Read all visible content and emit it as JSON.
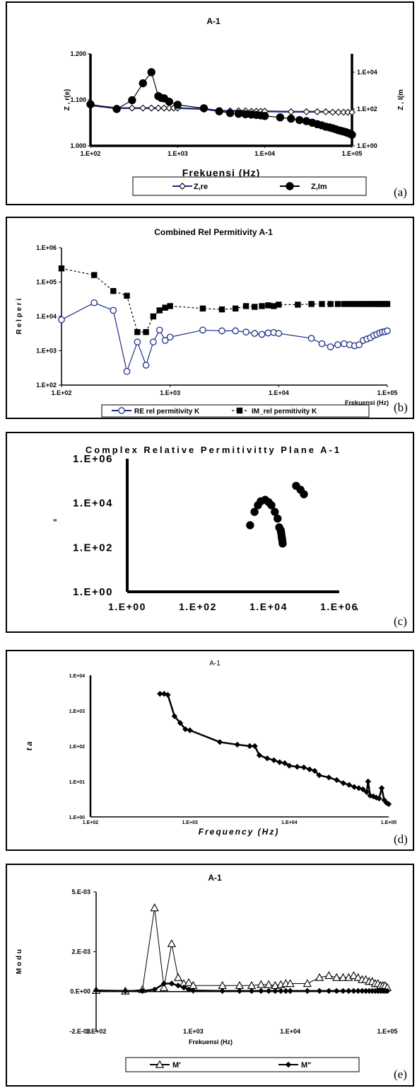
{
  "chart_data": [
    {
      "panel_label": "(a)",
      "type": "line",
      "title": "A-1",
      "xlabel": "Frekuensi (Hz)",
      "ylabel_left": "Z , r(e)",
      "ylabel_right": "Z , I(m",
      "x_scale": "log",
      "xlim": [
        100,
        100000
      ],
      "x_ticks": [
        "1.E+02",
        "1.E+03",
        "1.E+04",
        "1.E+05"
      ],
      "ylim_left": [
        1.0,
        1.2
      ],
      "y_ticks_left": [
        "1.000",
        "1.100",
        "1.200"
      ],
      "ylim_right": [
        1,
        100000
      ],
      "y_ticks_right": [
        "1.E+00",
        "1.E+02",
        "1.E+04"
      ],
      "legend": [
        "Z,re",
        "Z,Im"
      ],
      "legend_position": "bottom",
      "series": [
        {
          "name": "Z,re",
          "axis": "left",
          "color": "#1f2f8a",
          "marker": "diamond-open",
          "x": [
            100,
            200,
            300,
            400,
            500,
            600,
            700,
            800,
            900,
            1000,
            2000,
            3000,
            4000,
            5000,
            6000,
            7000,
            8000,
            9000,
            10000,
            20000,
            30000,
            40000,
            50000,
            60000,
            70000,
            80000,
            90000,
            100000
          ],
          "y": [
            1.088,
            1.082,
            1.082,
            1.082,
            1.082,
            1.082,
            1.082,
            1.082,
            1.082,
            1.082,
            1.08,
            1.076,
            1.076,
            1.076,
            1.076,
            1.075,
            1.075,
            1.075,
            1.075,
            1.074,
            1.074,
            1.074,
            1.074,
            1.073,
            1.073,
            1.073,
            1.073,
            1.073
          ]
        },
        {
          "name": "Z,Im",
          "axis": "right",
          "color": "#000000",
          "marker": "circle-filled",
          "x": [
            100,
            200,
            300,
            400,
            500,
            600,
            650,
            700,
            800,
            1000,
            2000,
            3000,
            4000,
            5000,
            6000,
            7000,
            8000,
            9000,
            10000,
            15000,
            20000,
            25000,
            30000,
            35000,
            40000,
            45000,
            50000,
            55000,
            60000,
            65000,
            70000,
            75000,
            80000,
            85000,
            90000,
            95000,
            100000
          ],
          "y": [
            180,
            100,
            300,
            2500,
            10000,
            500,
            400,
            380,
            250,
            170,
            110,
            75,
            60,
            55,
            52,
            50,
            48,
            45,
            42,
            35,
            30,
            25,
            22,
            18,
            15,
            13,
            11,
            10,
            9,
            8,
            7,
            6.5,
            6,
            5.5,
            5,
            4.5,
            4
          ]
        }
      ]
    },
    {
      "panel_label": "(b)",
      "type": "line",
      "title": "Combined Rel Permitivity A-1",
      "xlabel": "Frekuensi (Hz)",
      "ylabel": "R e l  p e r i",
      "x_scale": "log",
      "y_scale": "log",
      "xlim": [
        100,
        100000
      ],
      "ylim": [
        100,
        1000000
      ],
      "x_ticks": [
        "1.E+02",
        "1.E+03",
        "1.E+04",
        "1.E+05"
      ],
      "y_ticks": [
        "1.E+02",
        "1.E+03",
        "1.E+04",
        "1.E+05",
        "1.E+06"
      ],
      "legend": [
        "RE rel permitivity K",
        "IM_rel permitivity K"
      ],
      "legend_position": "bottom",
      "series": [
        {
          "name": "RE rel permitivity K",
          "color": "#1f2f8a",
          "marker": "circle-open",
          "x": [
            100,
            200,
            300,
            400,
            500,
            600,
            700,
            800,
            900,
            1000,
            2000,
            3000,
            4000,
            5000,
            6000,
            7000,
            8000,
            9000,
            10000,
            20000,
            25000,
            30000,
            35000,
            40000,
            45000,
            50000,
            55000,
            60000,
            65000,
            70000,
            75000,
            80000,
            85000,
            90000,
            95000,
            100000
          ],
          "y": [
            8000,
            25000,
            15000,
            250,
            1800,
            380,
            1800,
            4000,
            2000,
            2500,
            4000,
            3800,
            3800,
            3500,
            3200,
            3000,
            3300,
            3400,
            3200,
            2300,
            1600,
            1300,
            1500,
            1600,
            1500,
            1400,
            1500,
            2000,
            2200,
            2400,
            2800,
            3000,
            3300,
            3500,
            3600,
            3800
          ]
        },
        {
          "name": "IM_rel permitivity K",
          "color": "#000000",
          "marker": "square-filled",
          "x": [
            100,
            200,
            300,
            400,
            500,
            600,
            700,
            800,
            900,
            1000,
            2000,
            3000,
            4000,
            5000,
            6000,
            7000,
            8000,
            9000,
            10000,
            15000,
            20000,
            25000,
            30000,
            35000,
            40000,
            45000,
            50000,
            55000,
            60000,
            65000,
            70000,
            75000,
            80000,
            85000,
            90000,
            95000,
            100000
          ],
          "y": [
            250000,
            160000,
            55000,
            40000,
            3500,
            3500,
            10000,
            15000,
            18000,
            20000,
            17000,
            16000,
            17000,
            20000,
            19000,
            20000,
            21000,
            20000,
            22000,
            22000,
            23000,
            23000,
            23000,
            23000,
            23000,
            23000,
            23000,
            23000,
            23000,
            23000,
            23000,
            23000,
            23000,
            23000,
            23000,
            23000,
            23000
          ]
        }
      ]
    },
    {
      "panel_label": "(c)",
      "type": "scatter",
      "title": "Complex Relative Permitivitty Plane A-1",
      "xlabel": "'",
      "ylabel": "\"",
      "x_scale": "log",
      "y_scale": "log",
      "xlim": [
        1,
        1000000
      ],
      "ylim": [
        1,
        1000000
      ],
      "x_ticks": [
        "1.E+00",
        "1.E+02",
        "1.E+04",
        "1.E+06"
      ],
      "y_ticks": [
        "1.E+00",
        "1.E+02",
        "1.E+04",
        "1.E+06"
      ],
      "series": [
        {
          "color": "#000000",
          "marker": "circle-filled",
          "x": [
            3000,
            4000,
            5000,
            6000,
            8000,
            10000,
            12000,
            15000,
            18000,
            20000,
            22000,
            22500,
            23000,
            23500,
            24000,
            24500,
            25000,
            60000,
            80000,
            100000
          ],
          "y": [
            1000,
            4000,
            8000,
            12000,
            14000,
            11000,
            8000,
            4000,
            2000,
            800,
            600,
            500,
            400,
            300,
            250,
            200,
            150,
            60000,
            40000,
            25000
          ]
        }
      ]
    },
    {
      "panel_label": "(d)",
      "type": "line",
      "title": "A-1",
      "xlabel": "Frequency (Hz)",
      "ylabel": "t a",
      "x_scale": "log",
      "y_scale": "log",
      "xlim": [
        100,
        100000
      ],
      "ylim": [
        1,
        10000
      ],
      "x_ticks": [
        "1.E+02",
        "1.E+03",
        "1.E+04",
        "1.E+05"
      ],
      "y_ticks": [
        "1.E+00",
        "1.E+01",
        "1.E+02",
        "1.E+03",
        "1.E+04"
      ],
      "series": [
        {
          "color": "#000000",
          "marker": "diamond-filled",
          "x": [
            500,
            550,
            600,
            700,
            800,
            900,
            1000,
            2000,
            3000,
            4000,
            4500,
            5000,
            6000,
            7000,
            8000,
            9000,
            10000,
            12000,
            14000,
            16000,
            18000,
            20000,
            25000,
            30000,
            35000,
            40000,
            45000,
            50000,
            55000,
            60000,
            62000,
            65000,
            70000,
            75000,
            80000,
            85000,
            90000,
            95000,
            100000
          ],
          "y": [
            3000,
            3000,
            2800,
            700,
            450,
            300,
            280,
            130,
            110,
            100,
            100,
            55,
            45,
            40,
            35,
            33,
            28,
            26,
            25,
            22,
            20,
            15,
            13,
            11,
            9,
            8,
            7,
            6.5,
            6,
            5,
            10,
            4,
            3.8,
            3.5,
            3.3,
            6.5,
            3,
            2.5,
            2.3
          ]
        }
      ]
    },
    {
      "panel_label": "(e)",
      "type": "line",
      "title": "A-1",
      "xlabel": "Frekuensi (Hz)",
      "ylabel": "M o d u",
      "x_scale": "log",
      "xlim": [
        100,
        100000
      ],
      "ylim": [
        -0.002,
        0.005
      ],
      "x_ticks": [
        "1.E+02",
        "1.E+03",
        "1.E+04",
        "1.E+05"
      ],
      "y_ticks": [
        "-2.E-03",
        "0.E+00",
        "2.E-03",
        "5.E-03"
      ],
      "legend": [
        "M'",
        "M\""
      ],
      "legend_position": "bottom",
      "series": [
        {
          "name": "M'",
          "color": "#000000",
          "marker": "triangle-open",
          "x": [
            100,
            200,
            300,
            400,
            500,
            600,
            700,
            800,
            900,
            1000,
            2000,
            3000,
            4000,
            5000,
            6000,
            7000,
            8000,
            9000,
            10000,
            15000,
            20000,
            25000,
            30000,
            35000,
            40000,
            45000,
            50000,
            55000,
            60000,
            65000,
            70000,
            75000,
            80000,
            85000,
            90000,
            95000,
            100000
          ],
          "y": [
            5e-05,
            2e-05,
            0.0001,
            0.0042,
            0.0002,
            0.0024,
            0.0007,
            0.0004,
            0.00045,
            0.0003,
            0.0003,
            0.0003,
            0.0003,
            0.00035,
            0.00035,
            0.0003,
            0.00035,
            0.0004,
            0.0004,
            0.0004,
            0.0007,
            0.0008,
            0.0007,
            0.0007,
            0.0007,
            0.0008,
            0.0007,
            0.0006,
            0.0006,
            0.0005,
            0.0005,
            0.0004,
            0.0004,
            0.0003,
            0.0003,
            0.0003,
            0.0002
          ]
        },
        {
          "name": "M\"",
          "color": "#000000",
          "marker": "diamond-filled",
          "x": [
            100,
            200,
            300,
            400,
            500,
            600,
            700,
            800,
            900,
            1000,
            2000,
            3000,
            4000,
            5000,
            6000,
            7000,
            8000,
            9000,
            10000,
            15000,
            20000,
            25000,
            30000,
            35000,
            40000,
            45000,
            50000,
            55000,
            60000,
            65000,
            70000,
            75000,
            80000,
            85000,
            90000,
            95000,
            100000
          ],
          "y": [
            5e-05,
            3e-05,
            3e-05,
            0.0001,
            0.0004,
            0.0004,
            0.0003,
            0.0002,
            0.0001,
            5e-05,
            3e-05,
            3e-05,
            3e-05,
            3e-05,
            3e-05,
            3e-05,
            3e-05,
            3e-05,
            3e-05,
            3e-05,
            3e-05,
            3e-05,
            3e-05,
            3e-05,
            3e-05,
            3e-05,
            3e-05,
            3e-05,
            3e-05,
            3e-05,
            3e-05,
            3e-05,
            3e-05,
            3e-05,
            3e-05,
            3e-05,
            3e-05
          ]
        }
      ]
    }
  ]
}
